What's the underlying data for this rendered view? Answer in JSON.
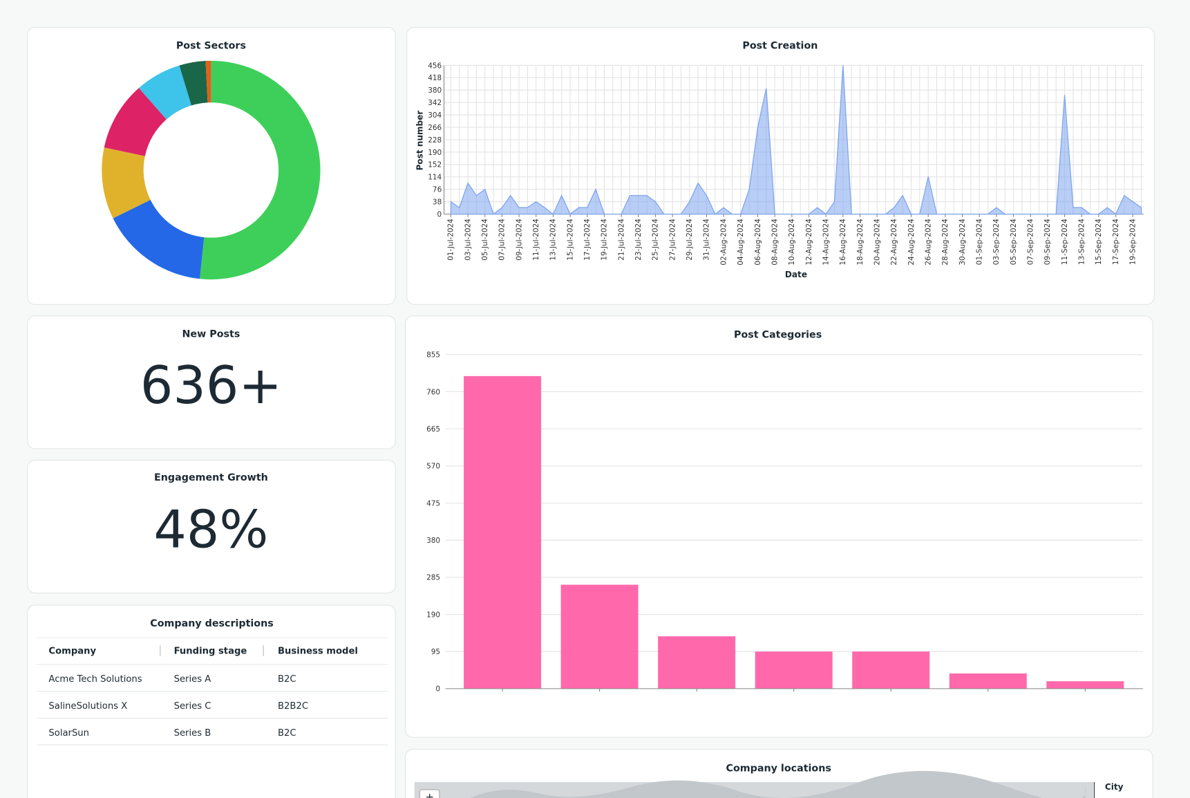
{
  "chart_data": [
    {
      "type": "pie",
      "title": "Post Sectors",
      "donut": true,
      "values": [
        51.7,
        16.1,
        10.6,
        10.2,
        6.8,
        3.9,
        0.8
      ],
      "colors": [
        "#3ecf5a",
        "#2468e8",
        "#e0b22b",
        "#dd2266",
        "#3ec3ea",
        "#1a6648",
        "#e0601c"
      ]
    },
    {
      "type": "area",
      "title": "Post Creation",
      "xlabel": "Date",
      "ylabel": "Post number",
      "color": "#7fa6ee",
      "grid": true,
      "ylim": [
        0,
        456
      ],
      "yticks": [
        0,
        38,
        76,
        114,
        152,
        190,
        228,
        266,
        304,
        342,
        380,
        418,
        456
      ],
      "categories": [
        "01-Jul-2024",
        null,
        "03-Jul-2024",
        null,
        "05-Jul-2024",
        null,
        "07-Jul-2024",
        null,
        "09-Jul-2024",
        null,
        "11-Jul-2024",
        null,
        "13-Jul-2024",
        null,
        "15-Jul-2024",
        null,
        "17-Jul-2024",
        null,
        "19-Jul-2024",
        null,
        "21-Jul-2024",
        null,
        "23-Jul-2024",
        null,
        "25-Jul-2024",
        null,
        "27-Jul-2024",
        null,
        "29-Jul-2024",
        null,
        "31-Jul-2024",
        null,
        "02-Aug-2024",
        null,
        "04-Aug-2024",
        null,
        "06-Aug-2024",
        null,
        "08-Aug-2024",
        null,
        "10-Aug-2024",
        null,
        "12-Aug-2024",
        null,
        "14-Aug-2024",
        null,
        "16-Aug-2024",
        null,
        "18-Aug-2024",
        null,
        "20-Aug-2024",
        null,
        "22-Aug-2024",
        null,
        "24-Aug-2024",
        null,
        "26-Aug-2024",
        null,
        "28-Aug-2024",
        null,
        "30-Aug-2024",
        null,
        "01-Sep-2024",
        null,
        "03-Sep-2024",
        null,
        "05-Sep-2024",
        null,
        "07-Sep-2024",
        null,
        "09-Sep-2024",
        null,
        "11-Sep-2024",
        null,
        "13-Sep-2024",
        null,
        "15-Sep-2024",
        null,
        "17-Sep-2024",
        null,
        "19-Sep-2024",
        null
      ],
      "values": [
        38,
        20,
        95,
        57,
        76,
        0,
        20,
        57,
        20,
        20,
        38,
        20,
        0,
        57,
        0,
        20,
        20,
        76,
        0,
        0,
        0,
        57,
        57,
        57,
        38,
        0,
        0,
        0,
        38,
        95,
        57,
        0,
        20,
        0,
        0,
        76,
        266,
        385,
        0,
        0,
        0,
        0,
        0,
        20,
        0,
        38,
        456,
        0,
        0,
        0,
        0,
        0,
        20,
        57,
        0,
        0,
        115,
        0,
        0,
        0,
        0,
        0,
        0,
        0,
        20,
        0,
        0,
        0,
        0,
        0,
        0,
        0,
        365,
        20,
        20,
        0,
        0,
        20,
        0,
        57,
        38,
        20
      ]
    },
    {
      "type": "bar",
      "title": "Post Categories",
      "color": "#ff69ab",
      "grid": true,
      "ylim": [
        0,
        855
      ],
      "yticks": [
        0,
        95,
        190,
        285,
        380,
        475,
        570,
        665,
        760,
        855
      ],
      "categories": [
        null,
        null,
        null,
        null,
        null,
        null,
        null
      ],
      "values": [
        800,
        266,
        134,
        95,
        95,
        39,
        19
      ]
    }
  ],
  "kpis": [
    {
      "title": "New Posts",
      "value": "636+"
    },
    {
      "title": "Engagement Growth",
      "value": "48%"
    }
  ],
  "table": {
    "title": "Company descriptions",
    "columns": [
      "Company",
      "Funding stage",
      "Business model"
    ],
    "rows": [
      [
        "Acme Tech Solutions",
        "Series A",
        "B2C"
      ],
      [
        "SalineSolutions X",
        "Series C",
        "B2B2C"
      ],
      [
        "SolarSun",
        "Series B",
        "B2C"
      ]
    ]
  },
  "map": {
    "title": "Company locations",
    "legend_title": "City"
  }
}
